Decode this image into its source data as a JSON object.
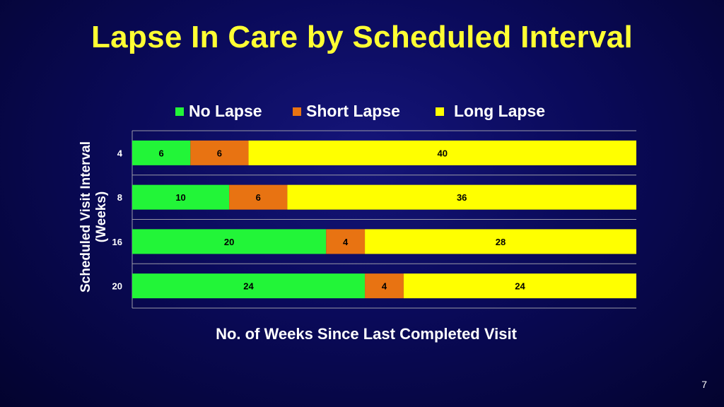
{
  "slide": {
    "title": "Lapse In Care by Scheduled Interval",
    "page_number": "7"
  },
  "chart_data": {
    "type": "bar",
    "orientation": "horizontal",
    "stacked": true,
    "categories": [
      "4",
      "8",
      "16",
      "20"
    ],
    "series": [
      {
        "name": "No Lapse",
        "color": "#22f538",
        "values": [
          6,
          10,
          20,
          24
        ]
      },
      {
        "name": "Short Lapse",
        "color": "#e87312",
        "values": [
          6,
          6,
          4,
          4
        ]
      },
      {
        "name": "Long Lapse",
        "color": "#ffff00",
        "values": [
          40,
          36,
          28,
          24
        ]
      }
    ],
    "xlabel": "No. of Weeks Since Last Completed Visit",
    "ylabel_lines": [
      "Scheduled Visit Interval",
      "(Weeks)"
    ],
    "xlim": [
      0,
      52
    ],
    "legend_position": "top",
    "data_labels": true,
    "grid": "horizontal"
  }
}
